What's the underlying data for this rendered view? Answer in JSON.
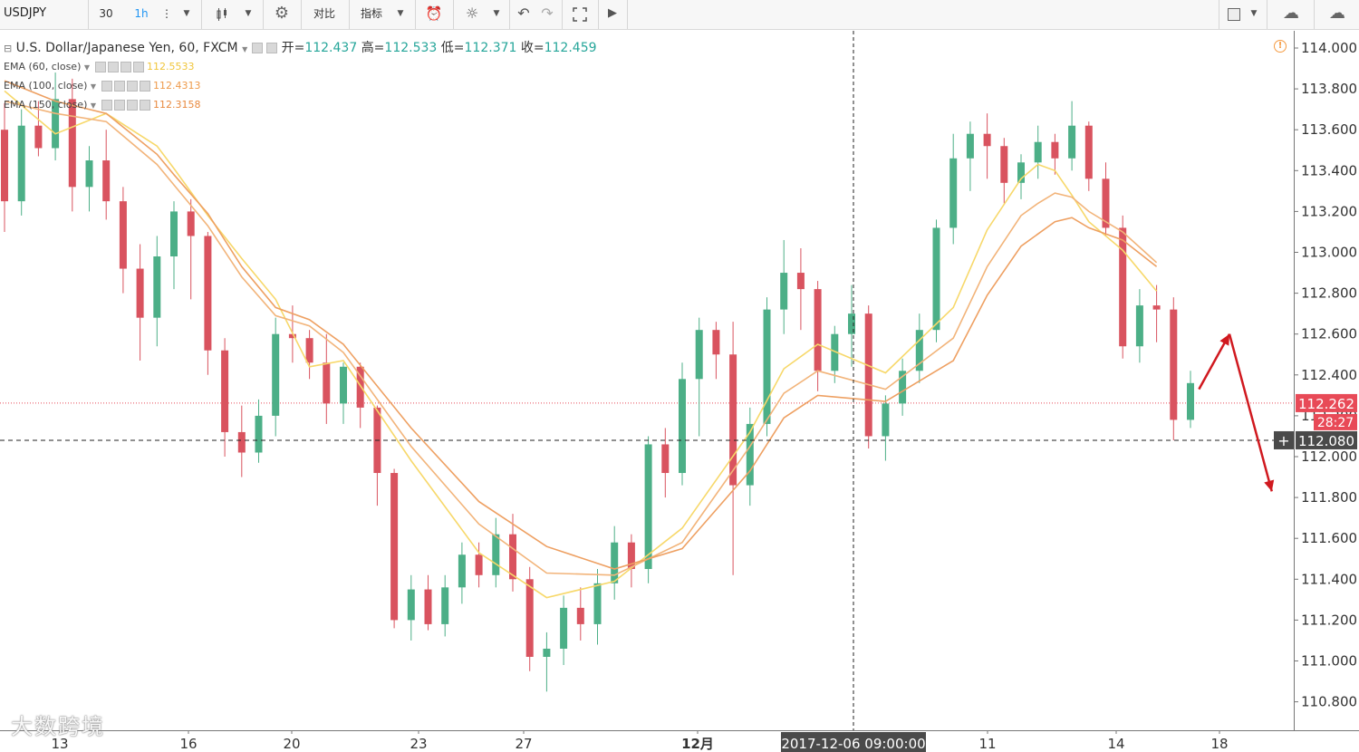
{
  "toolbar": {
    "symbol": "USDJPY",
    "interval": "30",
    "interval_active": "1h",
    "compare_label": "对比",
    "indicators_label": "指标"
  },
  "legend": {
    "title": "U.S. Dollar/Japanese Yen, 60, FXCM",
    "open_label": "开=",
    "open": "112.437",
    "high_label": "高=",
    "high": "112.533",
    "low_label": "低=",
    "low": "112.371",
    "close_label": "收=",
    "close": "112.459"
  },
  "indicators": [
    {
      "name": "EMA (60, close)",
      "value": "112.5533",
      "color": "#f5d54f"
    },
    {
      "name": "EMA (100, close)",
      "value": "112.4313",
      "color": "#f2b36b"
    },
    {
      "name": "EMA (150, close)",
      "value": "112.3158",
      "color": "#eea060"
    }
  ],
  "watermark": "大数跨境",
  "colors": {
    "up": "#4caf87",
    "down": "#d9535f",
    "arrow": "#d0191f",
    "price_label": "#e84a57",
    "crosshair_label": "#4a4a4a"
  },
  "chart_data": {
    "type": "candlestick",
    "symbol": "USDJPY",
    "timeframe": "60",
    "y_ticks": [
      "114.000",
      "113.800",
      "113.600",
      "113.400",
      "113.200",
      "113.000",
      "112.800",
      "112.600",
      "112.400",
      "112.200",
      "112.000",
      "111.800",
      "111.600",
      "111.400",
      "111.200",
      "111.000",
      "110.800"
    ],
    "ylim": [
      110.68,
      114.07
    ],
    "x_tick_labels": [
      "13",
      "16",
      "20",
      "23",
      "27",
      "12月",
      "11",
      "14",
      "18"
    ],
    "crosshair_time": "2017-12-06 09:00:00",
    "crosshair_price": "112.080",
    "current_price": "112.262",
    "countdown": "28:27",
    "ema_series": [
      {
        "name": "EMA (60, close)",
        "x": [
          0,
          3,
          6,
          9,
          10,
          12,
          14,
          16,
          18,
          20,
          24,
          28,
          32,
          36,
          40,
          44,
          46,
          48,
          52,
          56,
          58,
          60,
          61,
          62,
          63,
          64,
          66,
          68
        ],
        "y": [
          113.79,
          113.58,
          113.68,
          113.52,
          113.41,
          113.18,
          112.97,
          112.77,
          112.44,
          112.47,
          111.98,
          111.53,
          111.31,
          111.39,
          111.65,
          112.12,
          112.43,
          112.55,
          112.41,
          112.73,
          113.11,
          113.36,
          113.43,
          113.4,
          113.28,
          113.15,
          113.01,
          112.81
        ]
      },
      {
        "name": "EMA (100, close)",
        "x": [
          0,
          3,
          6,
          9,
          10,
          12,
          14,
          16,
          18,
          20,
          24,
          28,
          32,
          36,
          40,
          44,
          46,
          48,
          52,
          56,
          58,
          60,
          61,
          62,
          63,
          64,
          66,
          68
        ],
        "y": [
          113.74,
          113.68,
          113.64,
          113.43,
          113.33,
          113.13,
          112.88,
          112.69,
          112.64,
          112.51,
          112.05,
          111.67,
          111.43,
          111.42,
          111.58,
          112.05,
          112.31,
          112.42,
          112.33,
          112.58,
          112.93,
          113.18,
          113.24,
          113.29,
          113.27,
          113.2,
          113.1,
          112.95
        ]
      },
      {
        "name": "EMA (150, close)",
        "x": [
          0,
          3,
          6,
          9,
          10,
          12,
          14,
          16,
          18,
          20,
          24,
          28,
          32,
          36,
          40,
          44,
          46,
          48,
          52,
          56,
          58,
          60,
          61,
          62,
          63,
          64,
          66,
          68
        ],
        "y": [
          113.84,
          113.74,
          113.68,
          113.48,
          113.38,
          113.19,
          112.93,
          112.73,
          112.67,
          112.55,
          112.14,
          111.78,
          111.56,
          111.45,
          111.55,
          111.93,
          112.19,
          112.3,
          112.27,
          112.47,
          112.79,
          113.03,
          113.09,
          113.15,
          113.17,
          113.12,
          113.06,
          112.93
        ]
      }
    ],
    "candles": [
      {
        "o": 113.6,
        "h": 113.73,
        "l": 113.1,
        "c": 113.25
      },
      {
        "o": 113.25,
        "h": 113.7,
        "l": 113.18,
        "c": 113.62
      },
      {
        "o": 113.62,
        "h": 113.74,
        "l": 113.47,
        "c": 113.51
      },
      {
        "o": 113.51,
        "h": 113.88,
        "l": 113.45,
        "c": 113.75
      },
      {
        "o": 113.75,
        "h": 113.85,
        "l": 113.2,
        "c": 113.32
      },
      {
        "o": 113.32,
        "h": 113.52,
        "l": 113.2,
        "c": 113.45
      },
      {
        "o": 113.45,
        "h": 113.6,
        "l": 113.16,
        "c": 113.25
      },
      {
        "o": 113.25,
        "h": 113.32,
        "l": 112.8,
        "c": 112.92
      },
      {
        "o": 112.92,
        "h": 113.04,
        "l": 112.47,
        "c": 112.68
      },
      {
        "o": 112.68,
        "h": 113.08,
        "l": 112.54,
        "c": 112.98
      },
      {
        "o": 112.98,
        "h": 113.25,
        "l": 112.82,
        "c": 113.2
      },
      {
        "o": 113.2,
        "h": 113.26,
        "l": 112.77,
        "c": 113.08
      },
      {
        "o": 113.08,
        "h": 113.1,
        "l": 112.4,
        "c": 112.52
      },
      {
        "o": 112.52,
        "h": 112.58,
        "l": 112.0,
        "c": 112.12
      },
      {
        "o": 112.12,
        "h": 112.25,
        "l": 111.9,
        "c": 112.02
      },
      {
        "o": 112.02,
        "h": 112.28,
        "l": 111.97,
        "c": 112.2
      },
      {
        "o": 112.2,
        "h": 112.68,
        "l": 112.1,
        "c": 112.6
      },
      {
        "o": 112.6,
        "h": 112.74,
        "l": 112.46,
        "c": 112.58
      },
      {
        "o": 112.58,
        "h": 112.62,
        "l": 112.38,
        "c": 112.46
      },
      {
        "o": 112.46,
        "h": 112.6,
        "l": 112.16,
        "c": 112.26
      },
      {
        "o": 112.26,
        "h": 112.46,
        "l": 112.16,
        "c": 112.44
      },
      {
        "o": 112.44,
        "h": 112.46,
        "l": 112.14,
        "c": 112.24
      },
      {
        "o": 112.24,
        "h": 112.25,
        "l": 111.76,
        "c": 111.92
      },
      {
        "o": 111.92,
        "h": 111.94,
        "l": 111.16,
        "c": 111.2
      },
      {
        "o": 111.2,
        "h": 111.42,
        "l": 111.1,
        "c": 111.35
      },
      {
        "o": 111.35,
        "h": 111.42,
        "l": 111.15,
        "c": 111.18
      },
      {
        "o": 111.18,
        "h": 111.42,
        "l": 111.12,
        "c": 111.36
      },
      {
        "o": 111.36,
        "h": 111.58,
        "l": 111.28,
        "c": 111.52
      },
      {
        "o": 111.52,
        "h": 111.58,
        "l": 111.36,
        "c": 111.42
      },
      {
        "o": 111.42,
        "h": 111.7,
        "l": 111.36,
        "c": 111.62
      },
      {
        "o": 111.62,
        "h": 111.72,
        "l": 111.34,
        "c": 111.4
      },
      {
        "o": 111.4,
        "h": 111.46,
        "l": 110.95,
        "c": 111.02
      },
      {
        "o": 111.02,
        "h": 111.14,
        "l": 110.85,
        "c": 111.06
      },
      {
        "o": 111.06,
        "h": 111.32,
        "l": 110.98,
        "c": 111.26
      },
      {
        "o": 111.26,
        "h": 111.36,
        "l": 111.1,
        "c": 111.18
      },
      {
        "o": 111.18,
        "h": 111.45,
        "l": 111.08,
        "c": 111.38
      },
      {
        "o": 111.38,
        "h": 111.66,
        "l": 111.3,
        "c": 111.58
      },
      {
        "o": 111.58,
        "h": 111.62,
        "l": 111.36,
        "c": 111.45
      },
      {
        "o": 111.45,
        "h": 112.1,
        "l": 111.38,
        "c": 112.06
      },
      {
        "o": 112.06,
        "h": 112.14,
        "l": 111.8,
        "c": 111.92
      },
      {
        "o": 111.92,
        "h": 112.46,
        "l": 111.86,
        "c": 112.38
      },
      {
        "o": 112.38,
        "h": 112.68,
        "l": 112.1,
        "c": 112.62
      },
      {
        "o": 112.62,
        "h": 112.66,
        "l": 112.38,
        "c": 112.5
      },
      {
        "o": 112.5,
        "h": 112.66,
        "l": 111.42,
        "c": 111.86
      },
      {
        "o": 111.86,
        "h": 112.24,
        "l": 111.76,
        "c": 112.16
      },
      {
        "o": 112.16,
        "h": 112.78,
        "l": 112.1,
        "c": 112.72
      },
      {
        "o": 112.72,
        "h": 113.06,
        "l": 112.6,
        "c": 112.9
      },
      {
        "o": 112.9,
        "h": 113.02,
        "l": 112.62,
        "c": 112.82
      },
      {
        "o": 112.82,
        "h": 112.86,
        "l": 112.32,
        "c": 112.42
      },
      {
        "o": 112.42,
        "h": 112.64,
        "l": 112.36,
        "c": 112.6
      },
      {
        "o": 112.6,
        "h": 112.84,
        "l": 112.44,
        "c": 112.7
      },
      {
        "o": 112.7,
        "h": 112.74,
        "l": 112.04,
        "c": 112.1
      },
      {
        "o": 112.1,
        "h": 112.3,
        "l": 111.98,
        "c": 112.26
      },
      {
        "o": 112.26,
        "h": 112.48,
        "l": 112.2,
        "c": 112.42
      },
      {
        "o": 112.42,
        "h": 112.7,
        "l": 112.36,
        "c": 112.62
      },
      {
        "o": 112.62,
        "h": 113.16,
        "l": 112.56,
        "c": 113.12
      },
      {
        "o": 113.12,
        "h": 113.58,
        "l": 113.04,
        "c": 113.46
      },
      {
        "o": 113.46,
        "h": 113.64,
        "l": 113.3,
        "c": 113.58
      },
      {
        "o": 113.58,
        "h": 113.68,
        "l": 113.36,
        "c": 113.52
      },
      {
        "o": 113.52,
        "h": 113.56,
        "l": 113.24,
        "c": 113.34
      },
      {
        "o": 113.34,
        "h": 113.48,
        "l": 113.26,
        "c": 113.44
      },
      {
        "o": 113.44,
        "h": 113.62,
        "l": 113.36,
        "c": 113.54
      },
      {
        "o": 113.54,
        "h": 113.58,
        "l": 113.38,
        "c": 113.46
      },
      {
        "o": 113.46,
        "h": 113.74,
        "l": 113.4,
        "c": 113.62
      },
      {
        "o": 113.62,
        "h": 113.64,
        "l": 113.3,
        "c": 113.36
      },
      {
        "o": 113.36,
        "h": 113.44,
        "l": 113.08,
        "c": 113.12
      },
      {
        "o": 113.12,
        "h": 113.18,
        "l": 112.48,
        "c": 112.54
      },
      {
        "o": 112.54,
        "h": 112.82,
        "l": 112.46,
        "c": 112.74
      },
      {
        "o": 112.74,
        "h": 112.84,
        "l": 112.56,
        "c": 112.72
      },
      {
        "o": 112.72,
        "h": 112.78,
        "l": 112.08,
        "c": 112.18
      },
      {
        "o": 112.18,
        "h": 112.42,
        "l": 112.14,
        "c": 112.36
      }
    ],
    "arrows": [
      {
        "from": [
          70.5,
          112.33
        ],
        "to": [
          72.3,
          112.6
        ]
      },
      {
        "from": [
          72.3,
          112.6
        ],
        "to": [
          74.8,
          111.83
        ]
      }
    ]
  }
}
